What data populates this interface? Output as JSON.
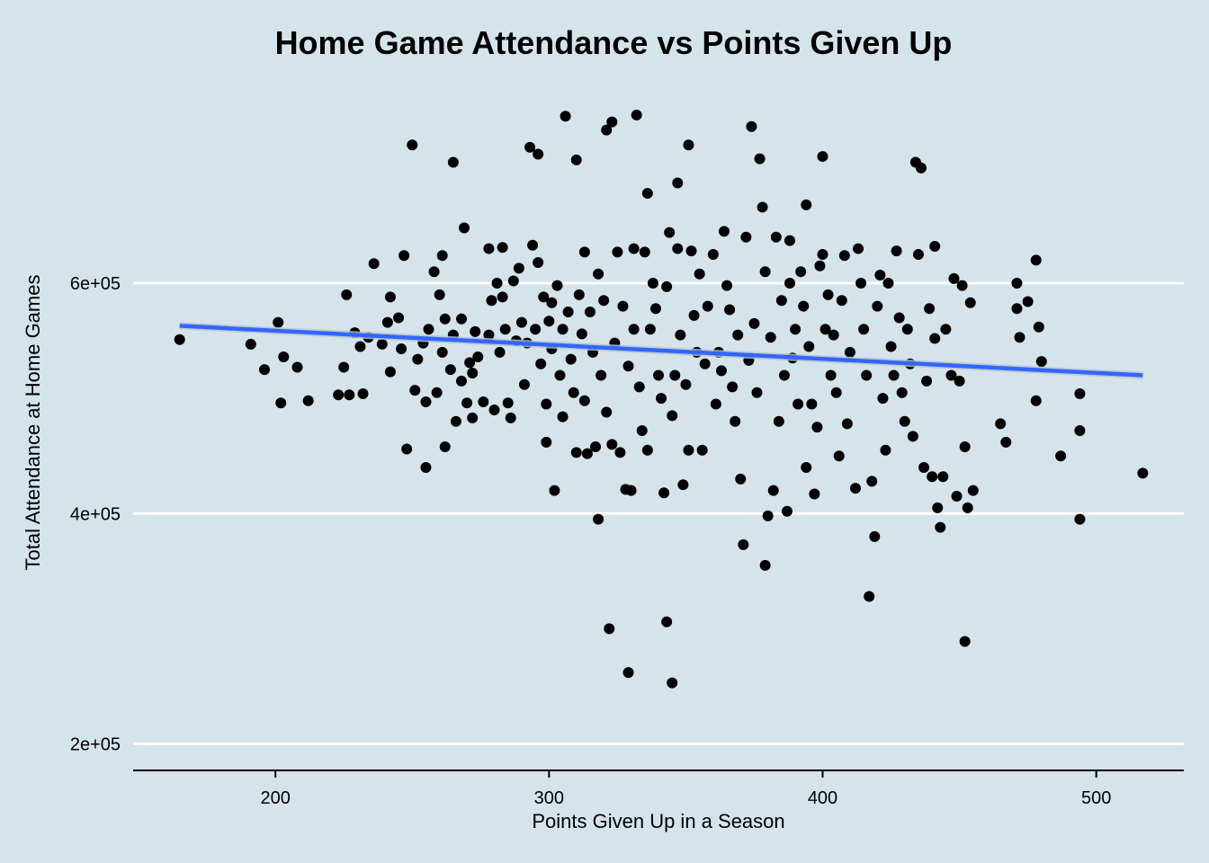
{
  "chart_data": {
    "type": "scatter",
    "title": "Home Game Attendance vs Points Given Up",
    "xlabel": "Points Given Up in a Season",
    "ylabel": "Total Attendance at Home Games",
    "xlim": [
      148,
      532
    ],
    "ylim": [
      177000,
      760000
    ],
    "x_ticks": [
      200,
      300,
      400,
      500
    ],
    "y_ticks": [
      200000,
      400000,
      600000
    ],
    "x_tick_labels": [
      "200",
      "300",
      "400",
      "500"
    ],
    "y_tick_labels": [
      "2e+05",
      "4e+05",
      "6e+05"
    ],
    "grid": "horizontal major lines only",
    "colors": {
      "background": "#d5e4eb",
      "points": "#000000",
      "trend_line": "#3366ff",
      "grid": "#ffffff"
    },
    "trend_line": {
      "x": [
        165,
        517
      ],
      "y": [
        563000,
        520000
      ]
    },
    "points": [
      [
        165,
        551000
      ],
      [
        191,
        547000
      ],
      [
        196,
        525000
      ],
      [
        201,
        566000
      ],
      [
        202,
        496000
      ],
      [
        203,
        536000
      ],
      [
        208,
        527000
      ],
      [
        212,
        498000
      ],
      [
        223,
        503000
      ],
      [
        225,
        527000
      ],
      [
        226,
        590000
      ],
      [
        227,
        503000
      ],
      [
        229,
        557000
      ],
      [
        231,
        545000
      ],
      [
        232,
        504000
      ],
      [
        234,
        553000
      ],
      [
        236,
        617000
      ],
      [
        239,
        547000
      ],
      [
        241,
        566000
      ],
      [
        242,
        523000
      ],
      [
        242,
        588000
      ],
      [
        245,
        570000
      ],
      [
        246,
        543000
      ],
      [
        247,
        624000
      ],
      [
        248,
        456000
      ],
      [
        250,
        720000
      ],
      [
        251,
        507000
      ],
      [
        252,
        534000
      ],
      [
        254,
        548000
      ],
      [
        255,
        497000
      ],
      [
        255,
        440000
      ],
      [
        256,
        560000
      ],
      [
        258,
        610000
      ],
      [
        259,
        505000
      ],
      [
        260,
        590000
      ],
      [
        261,
        540000
      ],
      [
        261,
        624000
      ],
      [
        262,
        458000
      ],
      [
        262,
        569000
      ],
      [
        264,
        525000
      ],
      [
        265,
        705000
      ],
      [
        265,
        555000
      ],
      [
        266,
        480000
      ],
      [
        268,
        569000
      ],
      [
        268,
        515000
      ],
      [
        269,
        648000
      ],
      [
        270,
        496000
      ],
      [
        271,
        531000
      ],
      [
        272,
        522000
      ],
      [
        272,
        483000
      ],
      [
        273,
        558000
      ],
      [
        274,
        536000
      ],
      [
        276,
        497000
      ],
      [
        278,
        555000
      ],
      [
        278,
        630000
      ],
      [
        279,
        585000
      ],
      [
        280,
        490000
      ],
      [
        281,
        600000
      ],
      [
        282,
        540000
      ],
      [
        283,
        631000
      ],
      [
        283,
        588000
      ],
      [
        284,
        560000
      ],
      [
        285,
        496000
      ],
      [
        286,
        483000
      ],
      [
        287,
        602000
      ],
      [
        288,
        550000
      ],
      [
        289,
        613000
      ],
      [
        290,
        566000
      ],
      [
        291,
        512000
      ],
      [
        292,
        548000
      ],
      [
        293,
        718000
      ],
      [
        294,
        633000
      ],
      [
        295,
        560000
      ],
      [
        296,
        712000
      ],
      [
        296,
        618000
      ],
      [
        297,
        530000
      ],
      [
        298,
        588000
      ],
      [
        299,
        495000
      ],
      [
        299,
        462000
      ],
      [
        300,
        567000
      ],
      [
        301,
        583000
      ],
      [
        301,
        543000
      ],
      [
        302,
        420000
      ],
      [
        303,
        598000
      ],
      [
        304,
        520000
      ],
      [
        305,
        560000
      ],
      [
        305,
        484000
      ],
      [
        306,
        745000
      ],
      [
        307,
        575000
      ],
      [
        308,
        534000
      ],
      [
        309,
        505000
      ],
      [
        310,
        453000
      ],
      [
        310,
        707000
      ],
      [
        311,
        590000
      ],
      [
        312,
        556000
      ],
      [
        313,
        498000
      ],
      [
        313,
        627000
      ],
      [
        314,
        452000
      ],
      [
        315,
        575000
      ],
      [
        316,
        540000
      ],
      [
        317,
        458000
      ],
      [
        318,
        395000
      ],
      [
        318,
        608000
      ],
      [
        319,
        520000
      ],
      [
        320,
        585000
      ],
      [
        321,
        733000
      ],
      [
        321,
        488000
      ],
      [
        322,
        300000
      ],
      [
        323,
        740000
      ],
      [
        323,
        460000
      ],
      [
        324,
        548000
      ],
      [
        325,
        627000
      ],
      [
        326,
        453000
      ],
      [
        327,
        580000
      ],
      [
        328,
        421000
      ],
      [
        329,
        262000
      ],
      [
        329,
        528000
      ],
      [
        330,
        420000
      ],
      [
        331,
        630000
      ],
      [
        331,
        560000
      ],
      [
        332,
        746000
      ],
      [
        333,
        510000
      ],
      [
        334,
        472000
      ],
      [
        335,
        627000
      ],
      [
        336,
        678000
      ],
      [
        336,
        455000
      ],
      [
        337,
        560000
      ],
      [
        338,
        600000
      ],
      [
        339,
        578000
      ],
      [
        340,
        520000
      ],
      [
        341,
        500000
      ],
      [
        342,
        418000
      ],
      [
        343,
        306000
      ],
      [
        343,
        597000
      ],
      [
        344,
        644000
      ],
      [
        345,
        253000
      ],
      [
        345,
        485000
      ],
      [
        346,
        520000
      ],
      [
        347,
        687000
      ],
      [
        347,
        630000
      ],
      [
        348,
        555000
      ],
      [
        349,
        425000
      ],
      [
        350,
        512000
      ],
      [
        351,
        720000
      ],
      [
        351,
        455000
      ],
      [
        352,
        628000
      ],
      [
        353,
        572000
      ],
      [
        354,
        540000
      ],
      [
        355,
        608000
      ],
      [
        356,
        455000
      ],
      [
        357,
        530000
      ],
      [
        358,
        580000
      ],
      [
        360,
        625000
      ],
      [
        361,
        495000
      ],
      [
        362,
        540000
      ],
      [
        363,
        524000
      ],
      [
        364,
        645000
      ],
      [
        365,
        598000
      ],
      [
        366,
        577000
      ],
      [
        367,
        510000
      ],
      [
        368,
        480000
      ],
      [
        369,
        555000
      ],
      [
        370,
        430000
      ],
      [
        371,
        373000
      ],
      [
        372,
        640000
      ],
      [
        373,
        533000
      ],
      [
        374,
        736000
      ],
      [
        375,
        565000
      ],
      [
        376,
        505000
      ],
      [
        377,
        708000
      ],
      [
        378,
        666000
      ],
      [
        379,
        610000
      ],
      [
        379,
        355000
      ],
      [
        380,
        398000
      ],
      [
        381,
        553000
      ],
      [
        382,
        420000
      ],
      [
        383,
        640000
      ],
      [
        384,
        480000
      ],
      [
        385,
        585000
      ],
      [
        386,
        520000
      ],
      [
        387,
        402000
      ],
      [
        388,
        600000
      ],
      [
        388,
        637000
      ],
      [
        389,
        535000
      ],
      [
        390,
        560000
      ],
      [
        391,
        495000
      ],
      [
        392,
        610000
      ],
      [
        393,
        580000
      ],
      [
        394,
        668000
      ],
      [
        394,
        440000
      ],
      [
        395,
        545000
      ],
      [
        396,
        495000
      ],
      [
        397,
        417000
      ],
      [
        398,
        475000
      ],
      [
        399,
        615000
      ],
      [
        400,
        710000
      ],
      [
        400,
        625000
      ],
      [
        401,
        560000
      ],
      [
        402,
        590000
      ],
      [
        403,
        520000
      ],
      [
        404,
        555000
      ],
      [
        405,
        505000
      ],
      [
        406,
        450000
      ],
      [
        407,
        585000
      ],
      [
        408,
        624000
      ],
      [
        409,
        478000
      ],
      [
        410,
        540000
      ],
      [
        412,
        422000
      ],
      [
        413,
        630000
      ],
      [
        414,
        600000
      ],
      [
        415,
        560000
      ],
      [
        416,
        520000
      ],
      [
        417,
        328000
      ],
      [
        418,
        428000
      ],
      [
        419,
        380000
      ],
      [
        420,
        580000
      ],
      [
        421,
        607000
      ],
      [
        422,
        500000
      ],
      [
        423,
        455000
      ],
      [
        424,
        600000
      ],
      [
        425,
        545000
      ],
      [
        426,
        520000
      ],
      [
        427,
        628000
      ],
      [
        428,
        570000
      ],
      [
        429,
        505000
      ],
      [
        430,
        480000
      ],
      [
        431,
        560000
      ],
      [
        432,
        530000
      ],
      [
        433,
        467000
      ],
      [
        434,
        705000
      ],
      [
        435,
        625000
      ],
      [
        436,
        700000
      ],
      [
        437,
        440000
      ],
      [
        438,
        515000
      ],
      [
        439,
        578000
      ],
      [
        440,
        432000
      ],
      [
        441,
        552000
      ],
      [
        441,
        632000
      ],
      [
        442,
        405000
      ],
      [
        443,
        388000
      ],
      [
        444,
        432000
      ],
      [
        445,
        560000
      ],
      [
        447,
        520000
      ],
      [
        448,
        604000
      ],
      [
        449,
        415000
      ],
      [
        450,
        515000
      ],
      [
        451,
        598000
      ],
      [
        452,
        289000
      ],
      [
        452,
        458000
      ],
      [
        453,
        405000
      ],
      [
        454,
        583000
      ],
      [
        455,
        420000
      ],
      [
        465,
        478000
      ],
      [
        467,
        462000
      ],
      [
        471,
        578000
      ],
      [
        471,
        600000
      ],
      [
        472,
        553000
      ],
      [
        475,
        584000
      ],
      [
        478,
        498000
      ],
      [
        478,
        620000
      ],
      [
        479,
        562000
      ],
      [
        480,
        532000
      ],
      [
        487,
        450000
      ],
      [
        494,
        504000
      ],
      [
        494,
        472000
      ],
      [
        494,
        395000
      ],
      [
        517,
        435000
      ]
    ]
  }
}
